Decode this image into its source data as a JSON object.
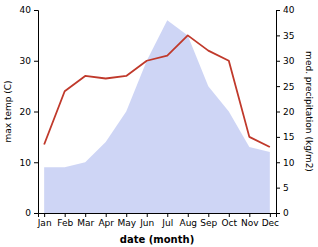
{
  "chart_data": {
    "type": "line",
    "xlabel": "date (month)",
    "ylabel": "max temp (C)",
    "y2label": "med. precipitation (kg/m2)",
    "categories": [
      "Jan",
      "Feb",
      "Mar",
      "Apr",
      "May",
      "Jun",
      "Jul",
      "Aug",
      "Sep",
      "Oct",
      "Nov",
      "Dec"
    ],
    "ylim": [
      0,
      40
    ],
    "yticks": [
      0,
      10,
      20,
      30,
      40
    ],
    "y2lim": [
      0,
      40
    ],
    "y2ticks": [
      0,
      5,
      10,
      15,
      20,
      25,
      30,
      35,
      40
    ],
    "grid": false,
    "series": [
      {
        "type": "area",
        "axis": "y2",
        "color": "#b3bef0",
        "values": [
          9,
          9,
          10,
          14,
          20,
          30,
          38,
          35,
          25,
          20,
          13,
          12
        ]
      },
      {
        "type": "line",
        "color": "#c0392b",
        "values": [
          13.5,
          24,
          27,
          26.5,
          27,
          30,
          31,
          35,
          32,
          30,
          15,
          13
        ]
      }
    ]
  }
}
